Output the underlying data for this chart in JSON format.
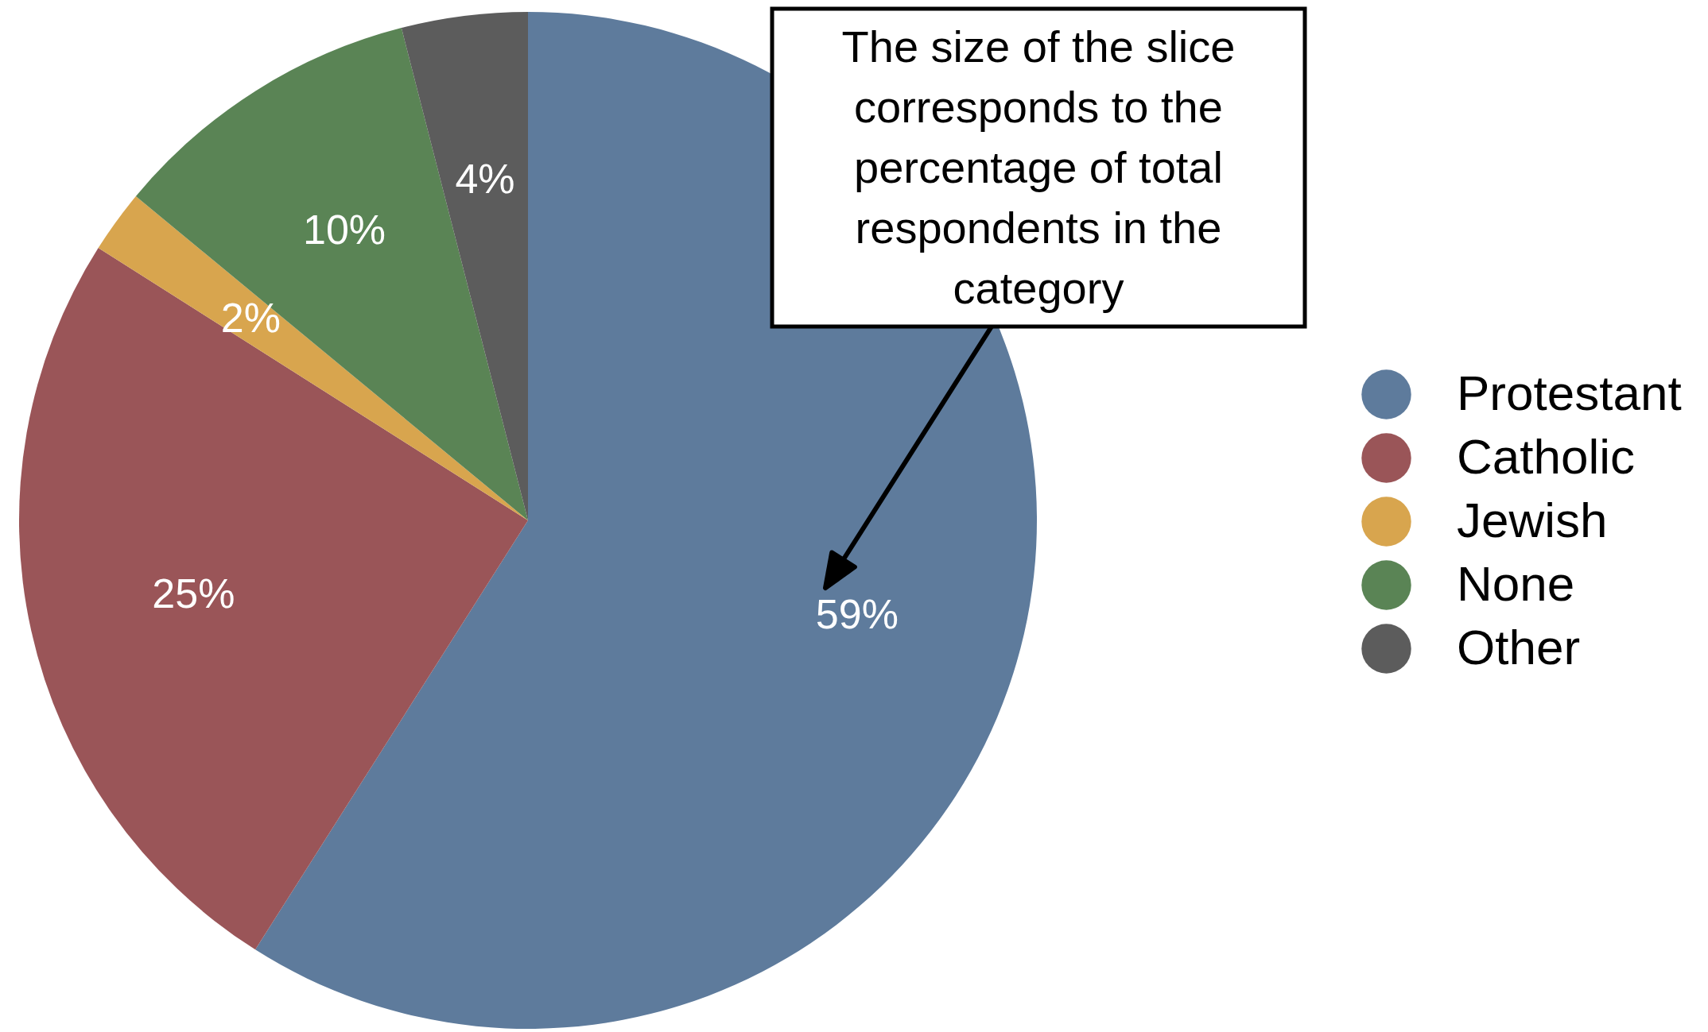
{
  "chart_data": {
    "type": "pie",
    "categories": [
      "Protestant",
      "Catholic",
      "Jewish",
      "None",
      "Other"
    ],
    "values": [
      59,
      25,
      2,
      10,
      4
    ],
    "colors": [
      "#5e7b9c",
      "#9a5558",
      "#d8a54e",
      "#5a8455",
      "#5c5c5c"
    ],
    "value_labels": [
      "59%",
      "25%",
      "2%",
      "10%",
      "4%"
    ],
    "legend": "right",
    "annotations": [
      "The size of the slice corresponds to the percentage of total respondents in the category"
    ]
  }
}
